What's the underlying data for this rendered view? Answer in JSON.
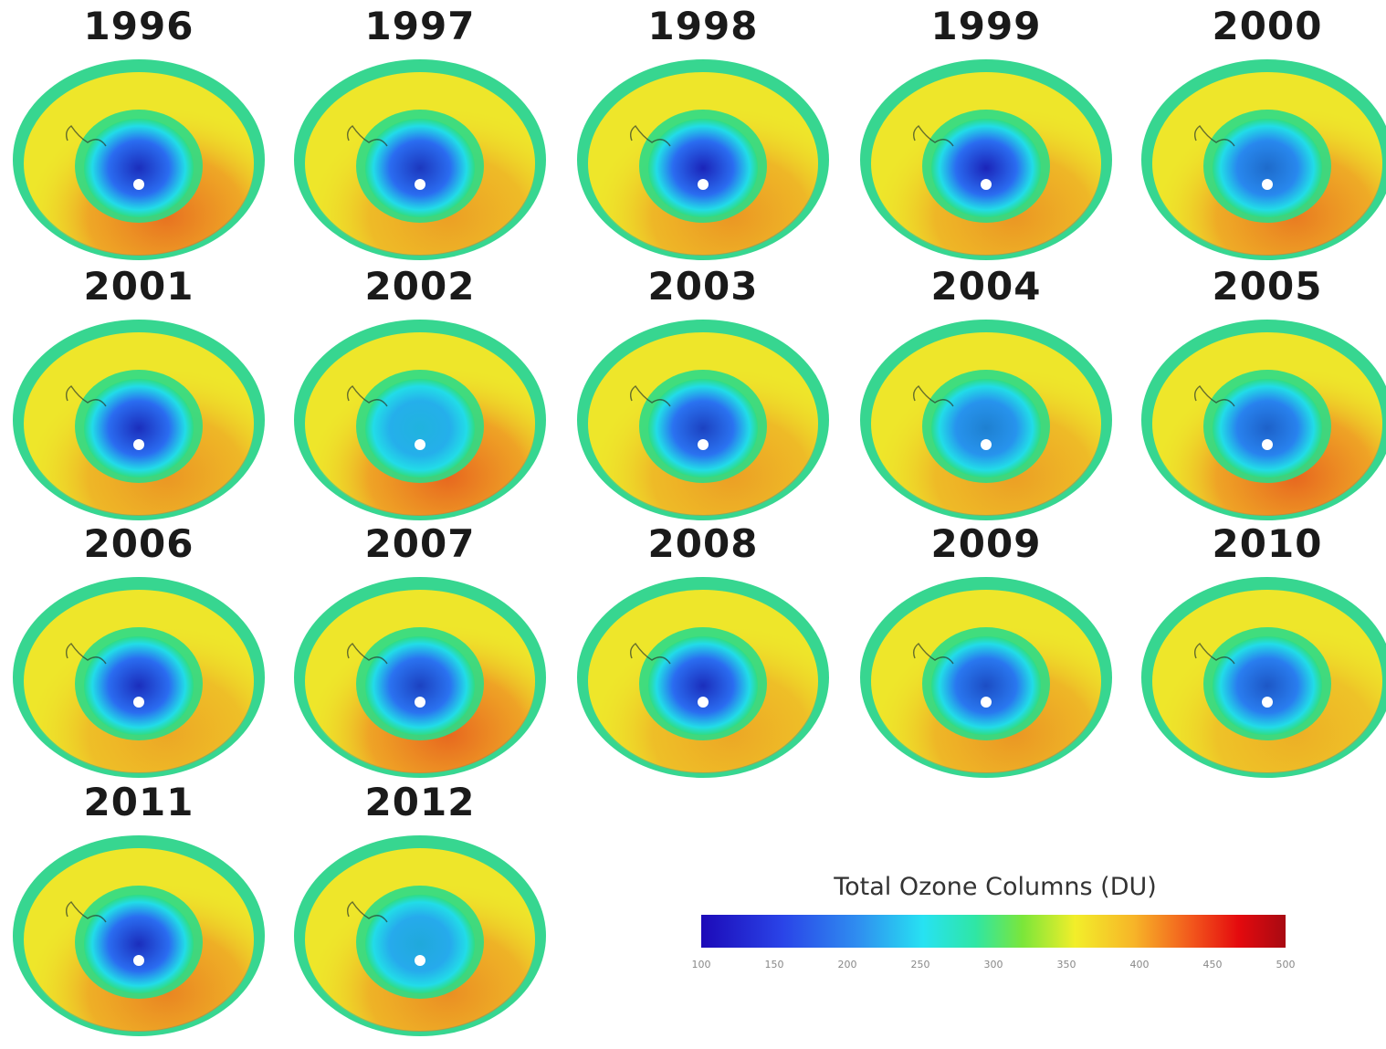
{
  "panels": [
    {
      "year": "1996",
      "depletion": 0.85,
      "ridge": 0.8
    },
    {
      "year": "1997",
      "depletion": 0.8,
      "ridge": 0.55
    },
    {
      "year": "1998",
      "depletion": 0.9,
      "ridge": 0.6
    },
    {
      "year": "1999",
      "depletion": 0.9,
      "ridge": 0.6
    },
    {
      "year": "2000",
      "depletion": 0.55,
      "ridge": 0.75
    },
    {
      "year": "2001",
      "depletion": 0.85,
      "ridge": 0.6
    },
    {
      "year": "2002",
      "depletion": 0.2,
      "ridge": 0.85
    },
    {
      "year": "2003",
      "depletion": 0.75,
      "ridge": 0.55
    },
    {
      "year": "2004",
      "depletion": 0.45,
      "ridge": 0.55
    },
    {
      "year": "2005",
      "depletion": 0.6,
      "ridge": 0.85
    },
    {
      "year": "2006",
      "depletion": 0.85,
      "ridge": 0.5
    },
    {
      "year": "2007",
      "depletion": 0.75,
      "ridge": 0.85
    },
    {
      "year": "2008",
      "depletion": 0.85,
      "ridge": 0.5
    },
    {
      "year": "2009",
      "depletion": 0.7,
      "ridge": 0.6
    },
    {
      "year": "2010",
      "depletion": 0.65,
      "ridge": 0.45
    },
    {
      "year": "2011",
      "depletion": 0.85,
      "ridge": 0.7
    },
    {
      "year": "2012",
      "depletion": 0.25,
      "ridge": 0.65
    }
  ],
  "legend": {
    "title": "Total Ozone Columns (DU)",
    "ticks": [
      "100",
      "150",
      "200",
      "250",
      "300",
      "350",
      "400",
      "450",
      "500"
    ]
  },
  "colors": {
    "depleted_core": "#1a0fb4",
    "hole_blue": "#2a6cf0",
    "hole_cyan": "#22dce8",
    "collar": "#2edc86",
    "mid_yellow": "#eee62a",
    "ridge_orange": "#ef8a24",
    "ridge_red": "#e4461c",
    "outer_rim": "#37d690"
  }
}
